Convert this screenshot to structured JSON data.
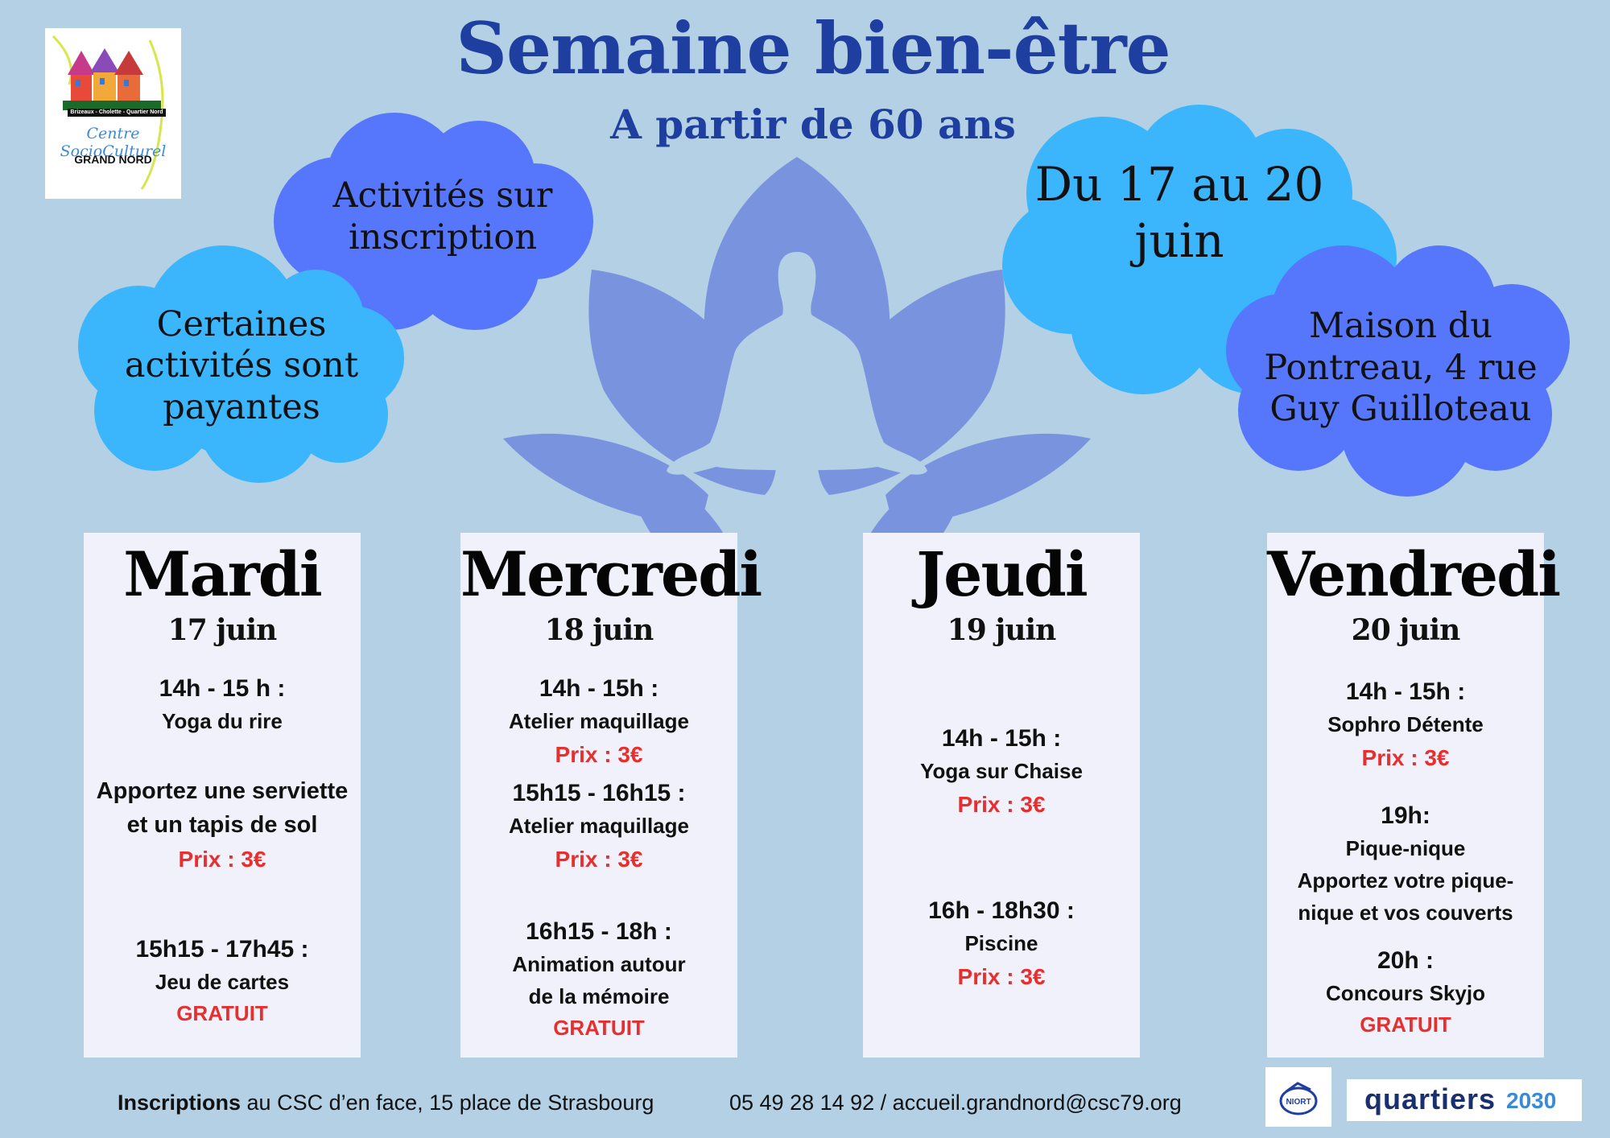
{
  "header": {
    "title": "Semaine bien-être",
    "subtitle": "A partir de 60 ans"
  },
  "logo": {
    "line1": "Brizeaux - Cholette - Quartier Nord",
    "line2": "Centre SocioCulturel",
    "line3": "GRAND NORD"
  },
  "clouds": {
    "inscription": "Activités sur inscription",
    "payantes": "Certaines activités sont payantes",
    "dates": "Du 17 au 20 juin",
    "lieu": "Maison du Pontreau, 4 rue Guy Guilloteau"
  },
  "days": [
    {
      "day": "Mardi",
      "date": "17 juin",
      "events": [
        {
          "time": "14h - 15 h :",
          "activity": "Yoga du rire"
        },
        {
          "note1": "Apportez une serviette",
          "note2": "et un tapis de sol",
          "price": "Prix : 3€"
        },
        {
          "time": "15h15 - 17h45 :",
          "activity": "Jeu de cartes",
          "price": "GRATUIT"
        }
      ]
    },
    {
      "day": "Mercredi",
      "date": "18 juin",
      "events": [
        {
          "time": "14h - 15h  :",
          "activity": "Atelier maquillage",
          "price": "Prix : 3€"
        },
        {
          "time": "15h15 - 16h15 :",
          "activity": "Atelier maquillage",
          "price": "Prix : 3€"
        },
        {
          "time": "16h15 - 18h :",
          "activity1": "Animation autour",
          "activity2": "de la mémoire",
          "price": "GRATUIT"
        }
      ]
    },
    {
      "day": "Jeudi",
      "date": "19 juin",
      "events": [
        {
          "time": "14h - 15h :",
          "activity": "Yoga sur Chaise",
          "price": "Prix : 3€"
        },
        {
          "time": "16h - 18h30 :",
          "activity": "Piscine",
          "price": "Prix : 3€"
        }
      ]
    },
    {
      "day": "Vendredi",
      "date": "20 juin",
      "events": [
        {
          "time": "14h - 15h :",
          "activity": "Sophro Détente",
          "price": "Prix : 3€"
        },
        {
          "time": "19h:",
          "activity": "Pique-nique",
          "note1": "Apportez votre pique-",
          "note2": "nique et vos couverts"
        },
        {
          "time": "20h :",
          "activity": "Concours Skyjo",
          "price": "GRATUIT"
        }
      ]
    }
  ],
  "footer": {
    "inscriptions_bold": "Inscriptions",
    "inscriptions_rest": " au CSC d’en face, 15 place de Strasbourg",
    "contact": "05 49 28 14 92 / accueil.grandnord@csc79.org"
  },
  "sponsors": {
    "niort": "NIORT",
    "quartiers": "quartiers",
    "quartiers_year": "2030"
  },
  "colors": {
    "background": "#b3d0e5",
    "title": "#1e3ea0",
    "cloud_light": "#3bb5fc",
    "cloud_dark": "#5676fc",
    "price": "#e63030",
    "lotus": "#7a93de"
  }
}
